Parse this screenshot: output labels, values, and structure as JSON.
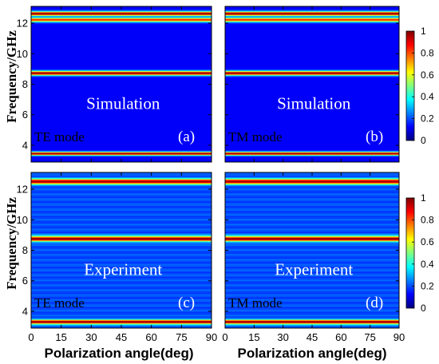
{
  "chart_data": {
    "type": "heatmap",
    "colormap": "jet",
    "colorbar": {
      "ticks": [
        0,
        0.2,
        0.4,
        0.6,
        0.8,
        1
      ],
      "range": [
        0,
        1
      ]
    },
    "xlabel": "Polarization angle(deg)",
    "ylabel": "Frequency/GHz",
    "xticks": [
      0,
      15,
      30,
      45,
      60,
      75,
      90
    ],
    "yticks": [
      4,
      6,
      8,
      10,
      12
    ],
    "xlim": [
      0,
      90
    ],
    "ylim": [
      2.9,
      13.1
    ],
    "panels": [
      {
        "tag": "(a)",
        "method": "Simulation",
        "mode": "TE mode",
        "background": 0.12,
        "bands": [
          {
            "freq": 3.45,
            "width": 0.08,
            "peak": 1.0
          },
          {
            "freq": 8.72,
            "width": 0.1,
            "peak": 1.0
          },
          {
            "freq": 12.22,
            "width": 0.1,
            "peak": 0.85
          },
          {
            "freq": 12.62,
            "width": 0.1,
            "peak": 1.0
          }
        ]
      },
      {
        "tag": "(b)",
        "method": "Simulation",
        "mode": "TM mode",
        "background": 0.12,
        "bands": [
          {
            "freq": 3.45,
            "width": 0.08,
            "peak": 1.0
          },
          {
            "freq": 8.72,
            "width": 0.1,
            "peak": 1.0
          },
          {
            "freq": 12.22,
            "width": 0.1,
            "peak": 0.85
          },
          {
            "freq": 12.62,
            "width": 0.1,
            "peak": 1.0
          }
        ]
      },
      {
        "tag": "(c)",
        "method": "Experiment",
        "mode": "TE mode",
        "background": 0.2,
        "bands": [
          {
            "freq": 3.3,
            "width": 0.1,
            "peak": 1.0
          },
          {
            "freq": 8.75,
            "width": 0.12,
            "peak": 1.0
          },
          {
            "freq": 12.5,
            "width": 0.12,
            "peak": 1.0
          }
        ]
      },
      {
        "tag": "(d)",
        "method": "Experiment",
        "mode": "TM mode",
        "background": 0.2,
        "bands": [
          {
            "freq": 3.3,
            "width": 0.1,
            "peak": 1.0
          },
          {
            "freq": 8.75,
            "width": 0.12,
            "peak": 1.0
          },
          {
            "freq": 12.5,
            "width": 0.12,
            "peak": 1.0
          }
        ]
      }
    ]
  }
}
